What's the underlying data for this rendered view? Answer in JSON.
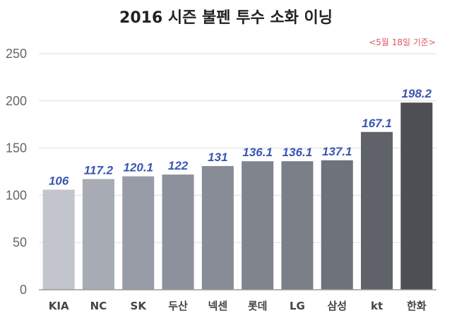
{
  "chart_data": {
    "type": "bar",
    "title": "2016 시즌 불펜 투수 소화 이닝",
    "note": "<5월 18일 기준>",
    "xlabel": "",
    "ylabel": "",
    "ylim": [
      0,
      250
    ],
    "yticks": [
      0,
      50,
      100,
      150,
      200,
      250
    ],
    "grid": true,
    "categories": [
      "KIA",
      "NC",
      "SK",
      "두산",
      "넥센",
      "롯데",
      "LG",
      "삼성",
      "kt",
      "한화"
    ],
    "series": [
      {
        "values": [
          106,
          117.2,
          120.1,
          122,
          131,
          136.1,
          136.1,
          137.1,
          167.1,
          198.2
        ],
        "labels": [
          "106",
          "117.2",
          "120.1",
          "122",
          "131",
          "136.1",
          "136.1",
          "137.1",
          "167.1",
          "198.2"
        ]
      }
    ],
    "colors": {
      "bars": [
        "#c2c5cc",
        "#a7abb4",
        "#989ca6",
        "#8d919b",
        "#888c96",
        "#80848d",
        "#7b7f88",
        "#6e727a",
        "#5f6268",
        "#4d4f54"
      ],
      "value_label": "#3a56b0",
      "note": "#e05566"
    }
  }
}
